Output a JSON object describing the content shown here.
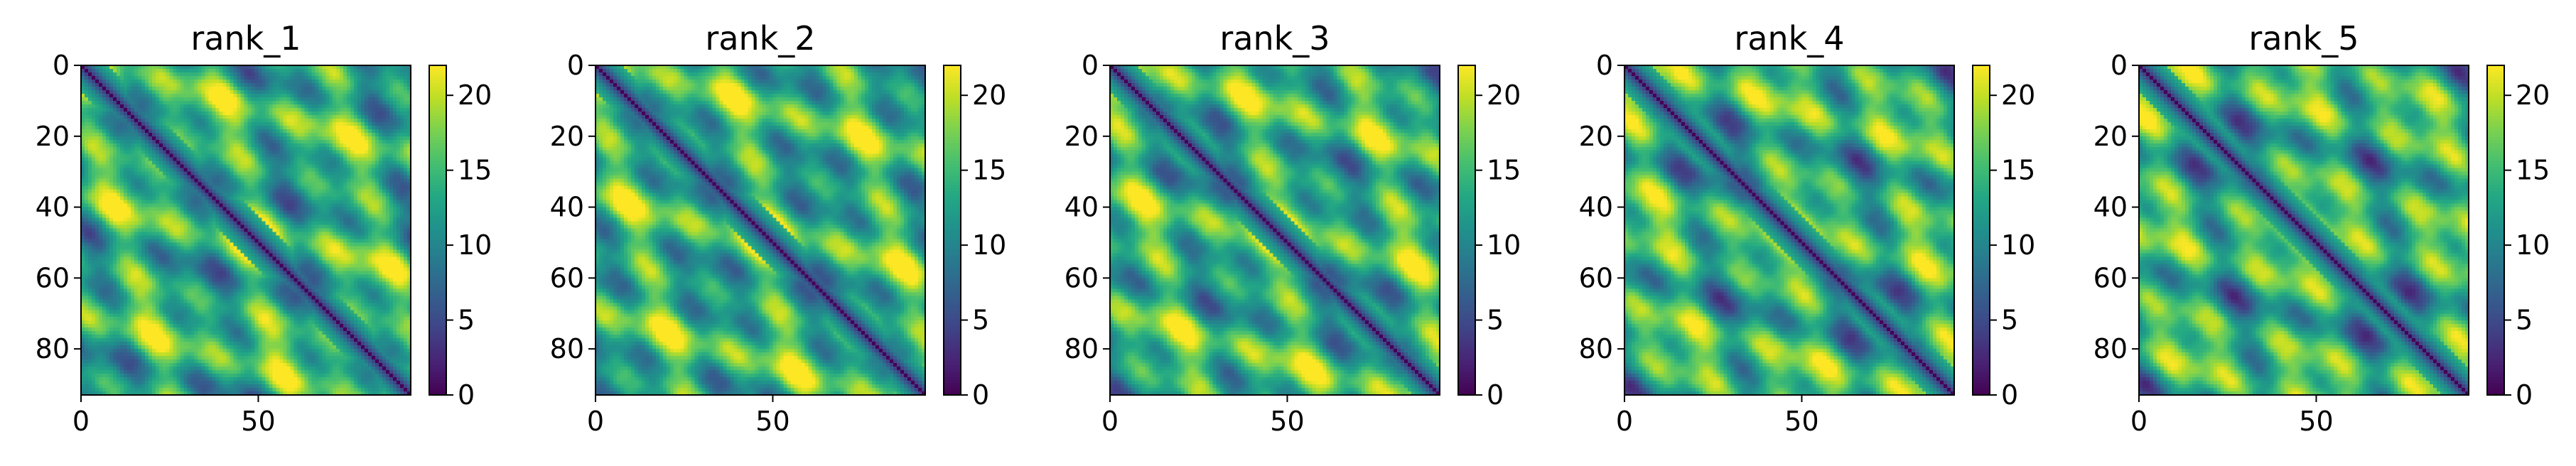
{
  "chart_data": [
    {
      "type": "heatmap",
      "title": "rank_1",
      "x_ticks": [
        "0",
        "50"
      ],
      "y_ticks": [
        "0",
        "20",
        "40",
        "60",
        "80"
      ],
      "colorbar_ticks": [
        "0",
        "5",
        "10",
        "15",
        "20"
      ],
      "colormap": "viridis",
      "value_range": [
        0,
        22
      ],
      "matrix_size": 93,
      "x_tick_values": [
        0,
        50
      ],
      "y_tick_values": [
        0,
        20,
        40,
        60,
        80
      ],
      "colorbar_tick_values": [
        0,
        5,
        10,
        15,
        20
      ],
      "variant": 0
    },
    {
      "type": "heatmap",
      "title": "rank_2",
      "x_ticks": [
        "0",
        "50"
      ],
      "y_ticks": [
        "0",
        "20",
        "40",
        "60",
        "80"
      ],
      "colorbar_ticks": [
        "0",
        "5",
        "10",
        "15",
        "20"
      ],
      "colormap": "viridis",
      "value_range": [
        0,
        22
      ],
      "matrix_size": 93,
      "x_tick_values": [
        0,
        50
      ],
      "y_tick_values": [
        0,
        20,
        40,
        60,
        80
      ],
      "colorbar_tick_values": [
        0,
        5,
        10,
        15,
        20
      ],
      "variant": 1
    },
    {
      "type": "heatmap",
      "title": "rank_3",
      "x_ticks": [
        "0",
        "50"
      ],
      "y_ticks": [
        "0",
        "20",
        "40",
        "60",
        "80"
      ],
      "colorbar_ticks": [
        "0",
        "5",
        "10",
        "15",
        "20"
      ],
      "colormap": "viridis",
      "value_range": [
        0,
        22
      ],
      "matrix_size": 93,
      "x_tick_values": [
        0,
        50
      ],
      "y_tick_values": [
        0,
        20,
        40,
        60,
        80
      ],
      "colorbar_tick_values": [
        0,
        5,
        10,
        15,
        20
      ],
      "variant": 2
    },
    {
      "type": "heatmap",
      "title": "rank_4",
      "x_ticks": [
        "0",
        "50"
      ],
      "y_ticks": [
        "0",
        "20",
        "40",
        "60",
        "80"
      ],
      "colorbar_ticks": [
        "0",
        "5",
        "10",
        "15",
        "20"
      ],
      "colormap": "viridis",
      "value_range": [
        0,
        22
      ],
      "matrix_size": 93,
      "x_tick_values": [
        0,
        50
      ],
      "y_tick_values": [
        0,
        20,
        40,
        60,
        80
      ],
      "colorbar_tick_values": [
        0,
        5,
        10,
        15,
        20
      ],
      "variant": 3
    },
    {
      "type": "heatmap",
      "title": "rank_5",
      "x_ticks": [
        "0",
        "50"
      ],
      "y_ticks": [
        "0",
        "20",
        "40",
        "60",
        "80"
      ],
      "colorbar_ticks": [
        "0",
        "5",
        "10",
        "15",
        "20"
      ],
      "colormap": "viridis",
      "value_range": [
        0,
        22
      ],
      "matrix_size": 93,
      "x_tick_values": [
        0,
        50
      ],
      "y_tick_values": [
        0,
        20,
        40,
        60,
        80
      ],
      "colorbar_tick_values": [
        0,
        5,
        10,
        15,
        20
      ],
      "variant": 4
    }
  ]
}
